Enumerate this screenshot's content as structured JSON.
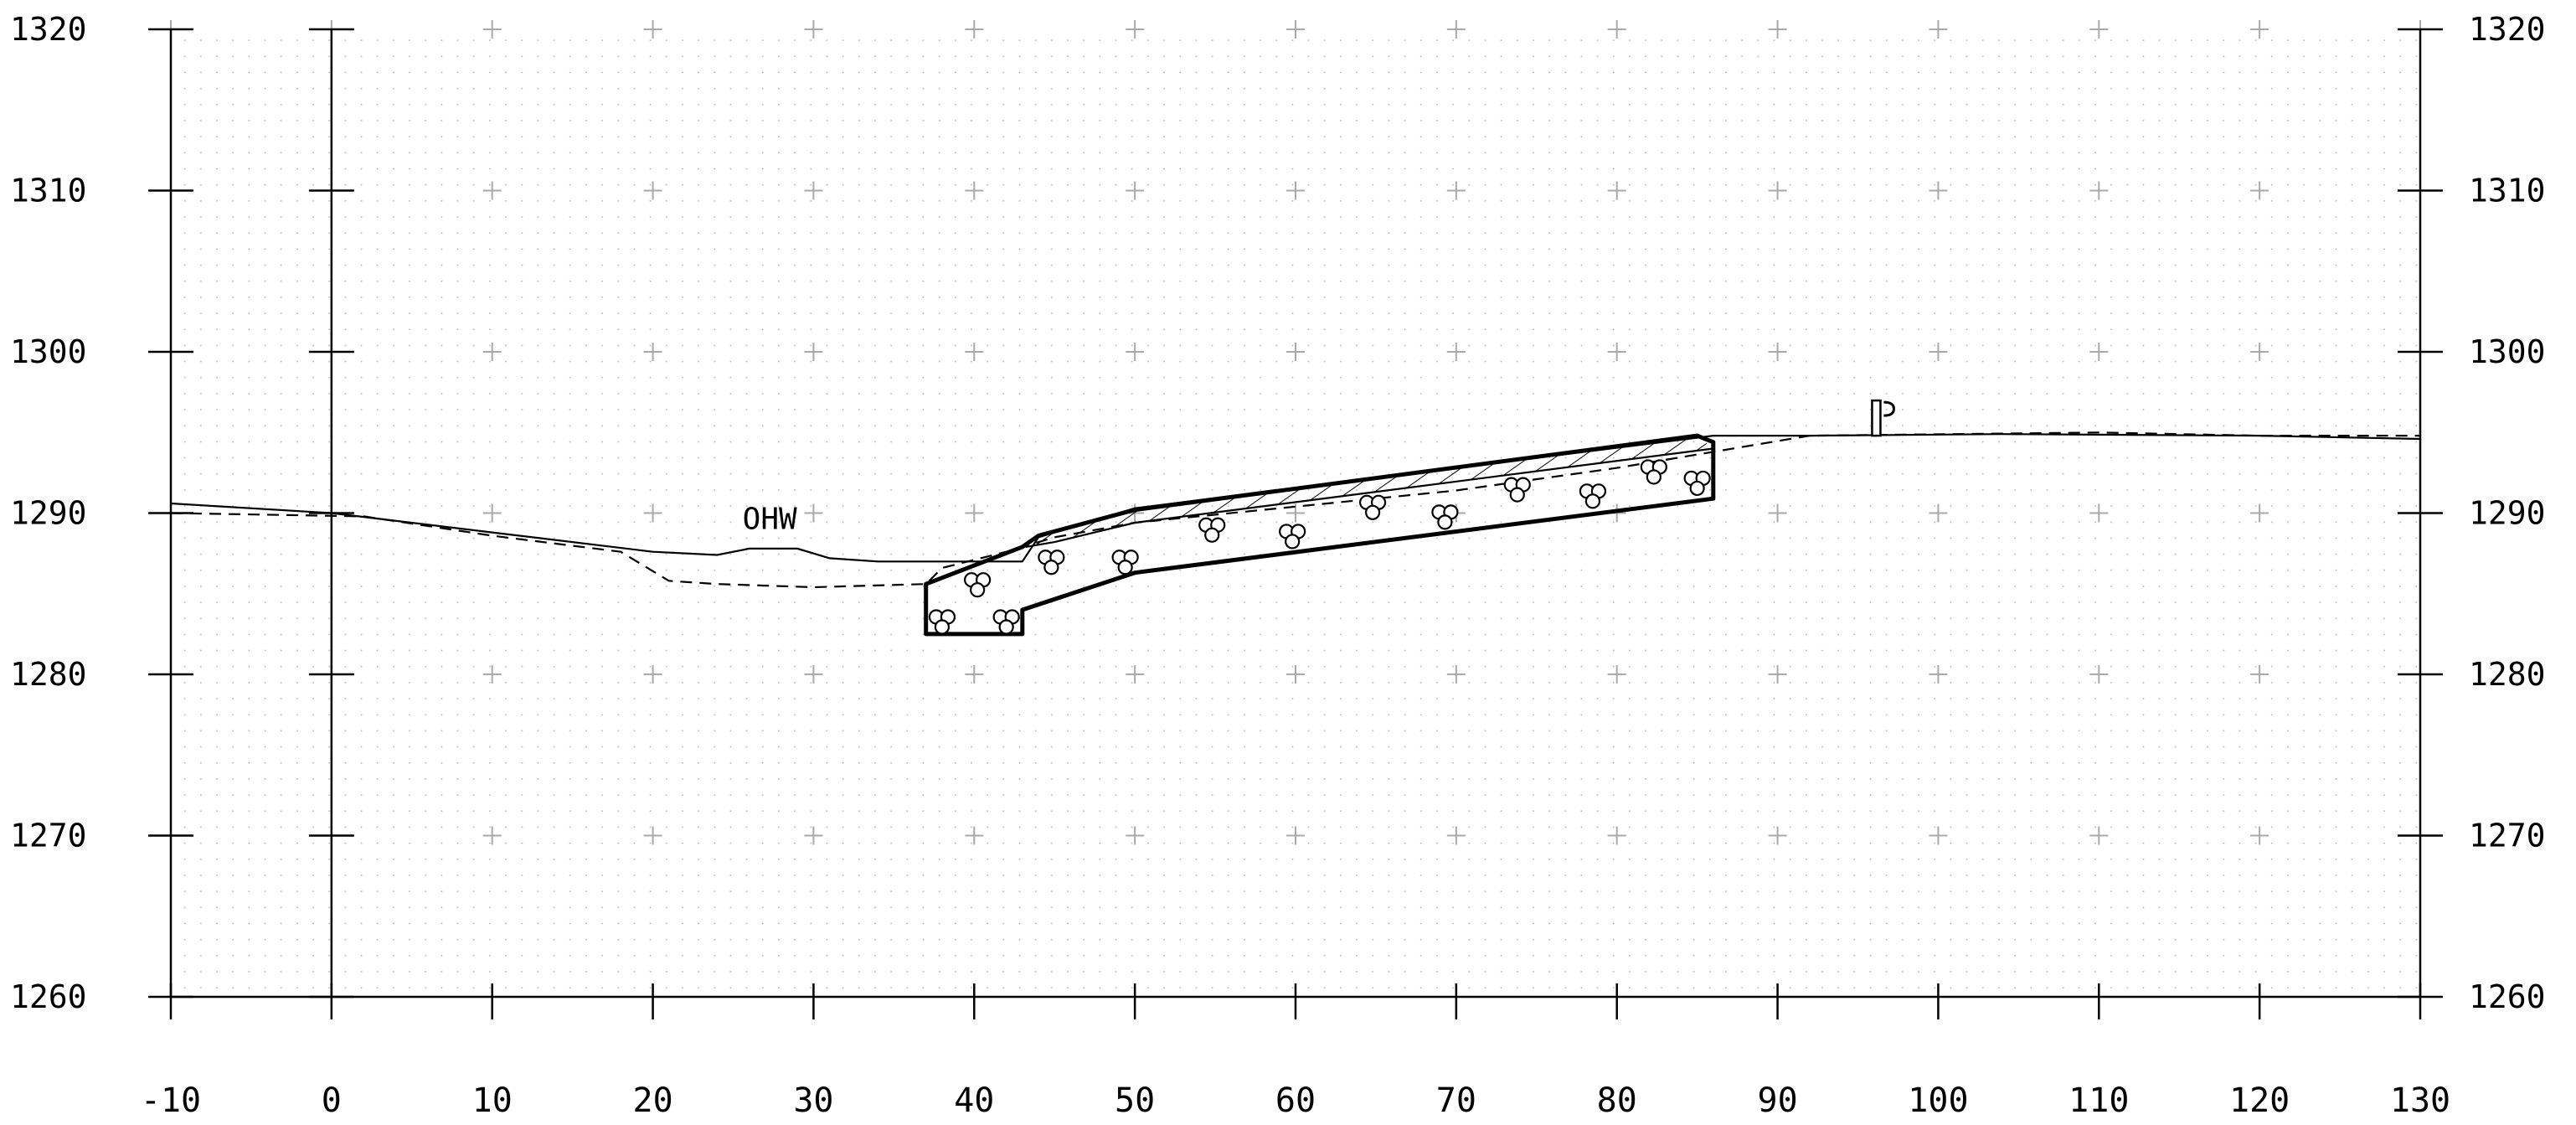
{
  "diagram": {
    "type": "cross-section",
    "x_ticks": [
      "-10",
      "0",
      "10",
      "20",
      "30",
      "40",
      "50",
      "60",
      "70",
      "80",
      "90",
      "100",
      "110",
      "120",
      "130"
    ],
    "y_ticks": [
      "1320",
      "1310",
      "1300",
      "1290",
      "1280",
      "1270",
      "1260"
    ],
    "x_range": [
      -10,
      130
    ],
    "y_range": [
      1260,
      1320
    ],
    "annotation": "OHW",
    "symbols": [
      "centerline-icon",
      "riprap-stone-icon"
    ]
  },
  "chart_data": {
    "type": "line",
    "x_range": [
      -10,
      130
    ],
    "y_range": [
      1260,
      1320
    ],
    "x_ticks": [
      -10,
      0,
      10,
      20,
      30,
      40,
      50,
      60,
      70,
      80,
      90,
      100,
      110,
      120,
      130
    ],
    "y_ticks": [
      1260,
      1270,
      1280,
      1290,
      1300,
      1310,
      1320
    ],
    "annotation": {
      "text": "OHW",
      "x": 26,
      "y": 1288.4
    },
    "grid": "crosses-and-dots",
    "series": [
      {
        "style": "solid",
        "points": [
          [
            -10,
            1290.6
          ],
          [
            0,
            1290.0
          ],
          [
            10,
            1288.8
          ],
          [
            20,
            1287.6
          ],
          [
            24,
            1287.4
          ],
          [
            26,
            1287.8
          ],
          [
            29,
            1287.8
          ],
          [
            31,
            1287.2
          ],
          [
            34,
            1287.0
          ],
          [
            43,
            1287.0
          ],
          [
            44,
            1288.5
          ],
          [
            50,
            1290.3
          ],
          [
            86,
            1294.8
          ],
          [
            87,
            1294.8
          ],
          [
            92,
            1294.8
          ],
          [
            104,
            1294.9
          ],
          [
            120,
            1294.8
          ],
          [
            130,
            1294.6
          ]
        ]
      },
      {
        "style": "dashed",
        "points": [
          [
            -10,
            1290.0
          ],
          [
            2,
            1289.8
          ],
          [
            10,
            1288.6
          ],
          [
            18,
            1287.6
          ],
          [
            21,
            1285.8
          ],
          [
            24,
            1285.6
          ],
          [
            30,
            1285.4
          ],
          [
            37,
            1285.6
          ],
          [
            38,
            1286.6
          ],
          [
            42,
            1287.6
          ],
          [
            45,
            1288.5
          ],
          [
            50,
            1289.4
          ],
          [
            60,
            1290.4
          ],
          [
            70,
            1291.4
          ],
          [
            80,
            1292.8
          ],
          [
            86,
            1293.8
          ],
          [
            92,
            1294.8
          ],
          [
            110,
            1295.0
          ],
          [
            120,
            1294.8
          ],
          [
            130,
            1294.8
          ]
        ]
      },
      {
        "style": "bold",
        "points": [
          [
            37,
            1285.6
          ],
          [
            37,
            1282.5
          ],
          [
            43,
            1282.5
          ],
          [
            43,
            1284.0
          ],
          [
            50,
            1286.3
          ],
          [
            86,
            1290.9
          ],
          [
            86,
            1294.4
          ],
          [
            85,
            1294.8
          ],
          [
            50,
            1290.2
          ],
          [
            44,
            1288.6
          ],
          [
            43,
            1287.9
          ],
          [
            37,
            1285.6
          ]
        ]
      }
    ]
  }
}
